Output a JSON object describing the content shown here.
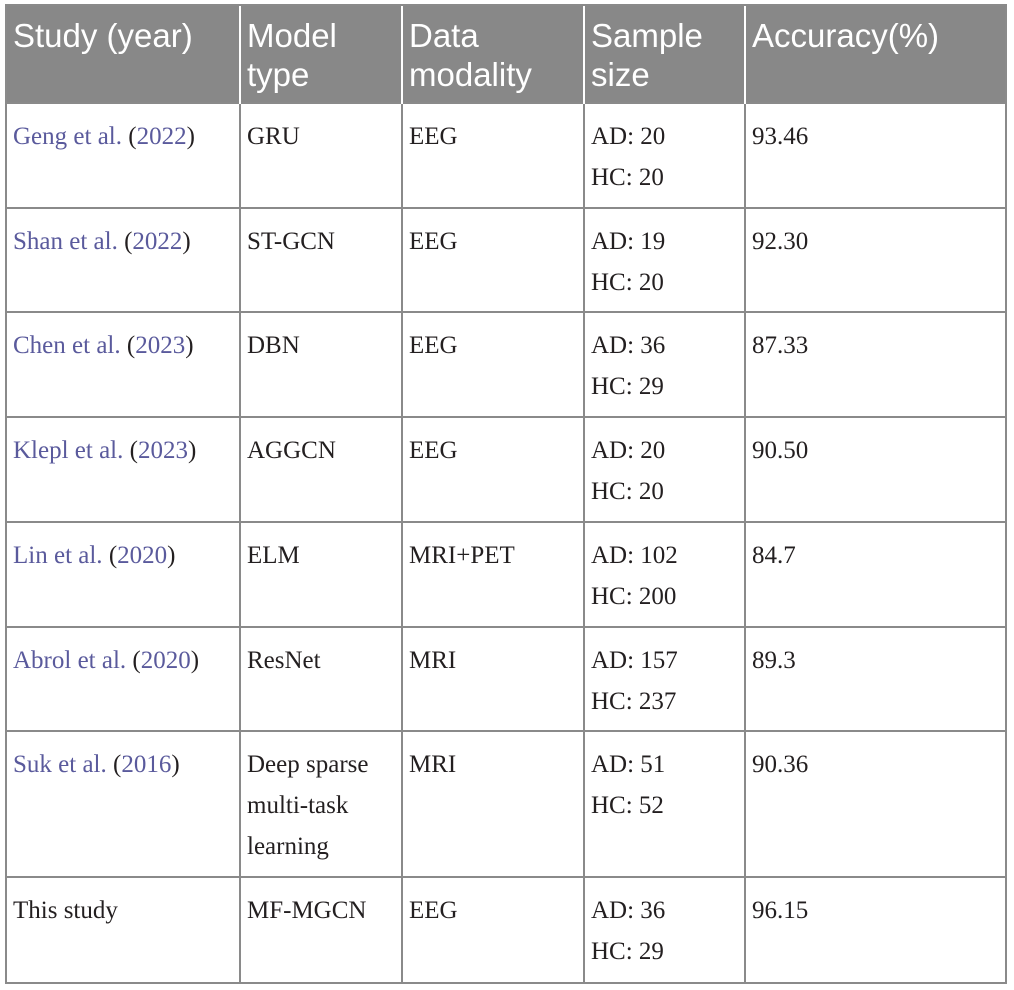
{
  "table": {
    "headers": [
      [
        "Study (year)"
      ],
      [
        "Model",
        "type"
      ],
      [
        "Data",
        "modality"
      ],
      [
        "Sample",
        "size"
      ],
      [
        "Accuracy(%)"
      ]
    ],
    "rows": [
      {
        "author": "Geng et al.",
        "year": "2022",
        "model": [
          "GRU"
        ],
        "modality": "EEG",
        "sample": [
          "AD: 20",
          "HC: 20"
        ],
        "accuracy": "93.46"
      },
      {
        "author": "Shan et al.",
        "year": "2022",
        "model": [
          "ST-GCN"
        ],
        "modality": "EEG",
        "sample": [
          "AD: 19",
          "HC: 20"
        ],
        "accuracy": "92.30"
      },
      {
        "author": "Chen et al.",
        "year": "2023",
        "model": [
          "DBN"
        ],
        "modality": "EEG",
        "sample": [
          "AD: 36",
          "HC: 29"
        ],
        "accuracy": "87.33"
      },
      {
        "author": "Klepl et al.",
        "year": "2023",
        "model": [
          "AGGCN"
        ],
        "modality": "EEG",
        "sample": [
          "AD: 20",
          "HC: 20"
        ],
        "accuracy": "90.50"
      },
      {
        "author": "Lin et al.",
        "year": "2020",
        "model": [
          "ELM"
        ],
        "modality": "MRI+PET",
        "sample": [
          "AD: 102",
          "HC: 200"
        ],
        "accuracy": "84.7"
      },
      {
        "author": "Abrol et al.",
        "year": "2020",
        "model": [
          "ResNet"
        ],
        "modality": "MRI",
        "sample": [
          "AD: 157",
          "HC: 237"
        ],
        "accuracy": "89.3"
      },
      {
        "author": "Suk et al.",
        "year": "2016",
        "model": [
          "Deep sparse",
          "multi-task",
          "learning"
        ],
        "modality": "MRI",
        "sample": [
          "AD: 51",
          "HC: 52"
        ],
        "accuracy": "90.36"
      },
      {
        "plain": "This study",
        "model": [
          "MF-MGCN"
        ],
        "modality": "EEG",
        "sample": [
          "AD: 36",
          "HC: 29"
        ],
        "accuracy": "96.15"
      }
    ]
  }
}
